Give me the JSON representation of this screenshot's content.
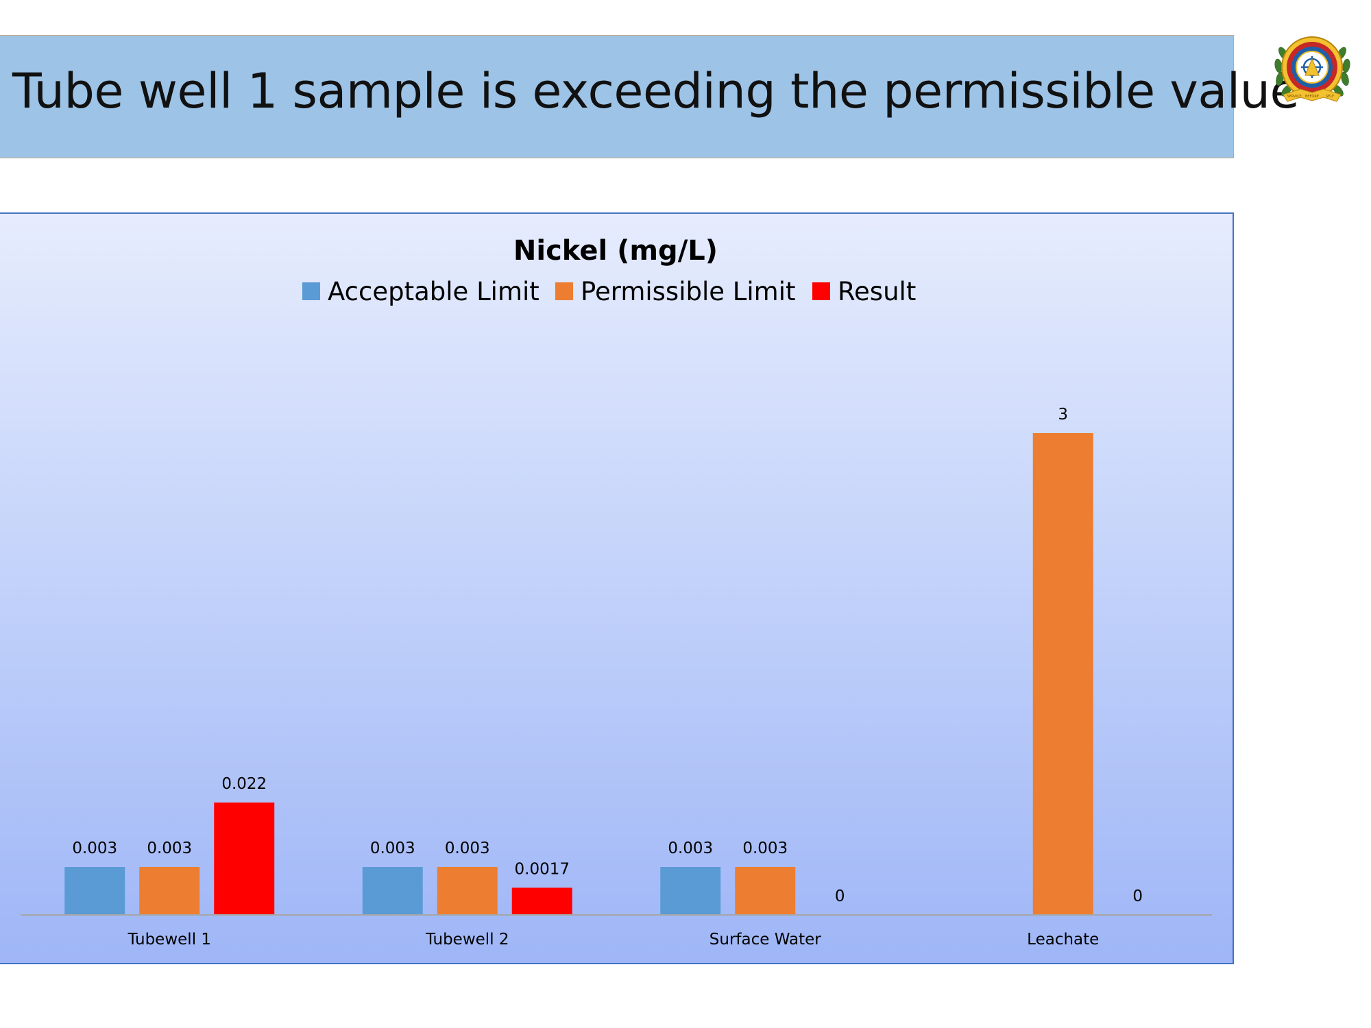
{
  "slide": {
    "title": "Tube well 1 sample is exceeding the permissible value"
  },
  "logo": {
    "icon": "institution-emblem-icon",
    "text": [
      "SERVICE",
      "BEFORE",
      "SELF"
    ]
  },
  "colors": {
    "banner": "#9dc3e6",
    "acceptable": "#5b9bd5",
    "permissible": "#ed7d31",
    "result": "#ff0000",
    "axis": "#a6a6a6",
    "text": "#000000"
  },
  "chart_data": {
    "type": "bar",
    "title": "Nickel (mg/L)",
    "categories": [
      "Tubewell 1",
      "Tubewell 2",
      "Surface Water",
      "Leachate"
    ],
    "series": [
      {
        "name": "Acceptable Limit",
        "color": "#5b9bd5",
        "values": [
          0.003,
          0.003,
          0.003,
          null
        ],
        "labels": [
          "0.003",
          "0.003",
          "0.003",
          ""
        ]
      },
      {
        "name": "Permissible Limit",
        "color": "#ed7d31",
        "values": [
          0.003,
          0.003,
          0.003,
          3
        ],
        "labels": [
          "0.003",
          "0.003",
          "0.003",
          "3"
        ]
      },
      {
        "name": "Result",
        "color": "#ff0000",
        "values": [
          0.022,
          0.0017,
          0,
          0
        ],
        "labels": [
          "0.022",
          "0.0017",
          "0",
          "0"
        ]
      }
    ],
    "legend": "top",
    "grid": false,
    "y_axis_shown": false,
    "note": "value axis is not linear as drawn"
  }
}
